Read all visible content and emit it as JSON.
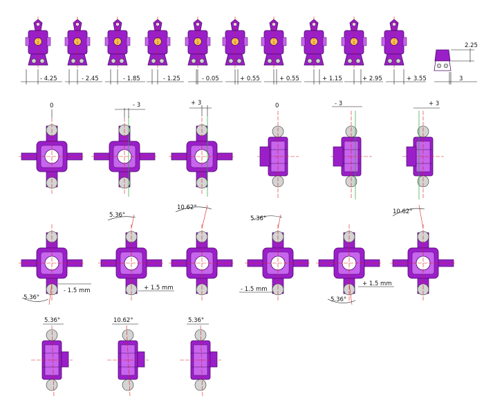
{
  "colors": {
    "part": "#9a1fc9",
    "part_dark": "#4a0a66",
    "part_light": "#c765ee",
    "ball": "#d4d4d4",
    "centerline": "#e01b1b",
    "offsetline": "#22aa33",
    "dimension": "#111111"
  },
  "row1": [
    {
      "label": "- 4.25"
    },
    {
      "label": "- 2.45"
    },
    {
      "label": "- 1.85"
    },
    {
      "label": "- 1.25"
    },
    {
      "label": "- 0.05"
    },
    {
      "label": "+ 0.55"
    },
    {
      "label": "+ 0.55"
    },
    {
      "label": "+ 1.15"
    },
    {
      "label": "+ 2.95"
    },
    {
      "label": "+ 3.55"
    }
  ],
  "row1_end": {
    "height_label": "2.25",
    "width_label": "3"
  },
  "row2": [
    {
      "label": "0"
    },
    {
      "label": "- 3"
    },
    {
      "label": "+ 3"
    },
    {
      "label": "0"
    },
    {
      "label": "- 3"
    },
    {
      "label": "+ 3"
    }
  ],
  "row3": [
    {
      "angle": "5.36°",
      "offset": "- 1.5 mm"
    },
    {
      "angle": "5.36°",
      "offset": "+ 1.5 mm"
    },
    {
      "angle": "10.62°"
    },
    {
      "angle": "5.36°",
      "offset": "- 1.5 mm"
    },
    {
      "angle": "5.36°",
      "offset": "+ 1.5 mm"
    },
    {
      "angle": "10.62°"
    }
  ],
  "row4": [
    {
      "angle": "5.36°"
    },
    {
      "angle": "10.62°"
    },
    {
      "angle": "5.36°"
    }
  ]
}
